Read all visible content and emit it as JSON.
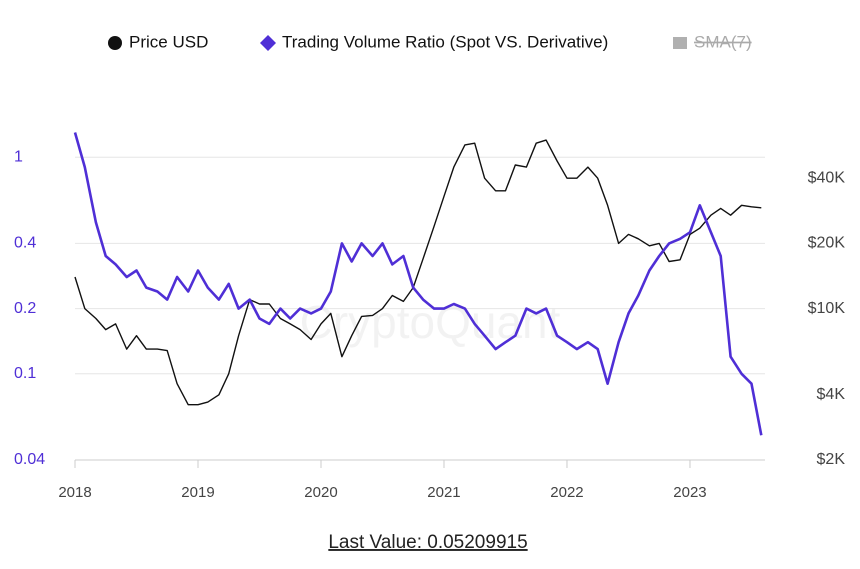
{
  "chart_data": {
    "type": "line",
    "x": [
      2018.0,
      2018.08,
      2018.17,
      2018.25,
      2018.33,
      2018.42,
      2018.5,
      2018.58,
      2018.67,
      2018.75,
      2018.83,
      2018.92,
      2019.0,
      2019.08,
      2019.17,
      2019.25,
      2019.33,
      2019.42,
      2019.5,
      2019.58,
      2019.67,
      2019.75,
      2019.83,
      2019.92,
      2020.0,
      2020.08,
      2020.17,
      2020.25,
      2020.33,
      2020.42,
      2020.5,
      2020.58,
      2020.67,
      2020.75,
      2020.83,
      2020.92,
      2021.0,
      2021.08,
      2021.17,
      2021.25,
      2021.33,
      2021.42,
      2021.5,
      2021.58,
      2021.67,
      2021.75,
      2021.83,
      2021.92,
      2022.0,
      2022.08,
      2022.17,
      2022.25,
      2022.33,
      2022.42,
      2022.5,
      2022.58,
      2022.67,
      2022.75,
      2022.83,
      2022.92,
      2023.0,
      2023.08,
      2023.17,
      2023.25,
      2023.33,
      2023.42,
      2023.5,
      2023.58
    ],
    "series": [
      {
        "name": "Price USD",
        "color": "#111111",
        "axis": "y2",
        "marker": "circle",
        "values": [
          14000,
          10000,
          9000,
          8000,
          8500,
          6500,
          7500,
          6500,
          6500,
          6400,
          4500,
          3600,
          3600,
          3700,
          4000,
          5000,
          7500,
          11000,
          10500,
          10500,
          9000,
          8500,
          8000,
          7200,
          8500,
          9500,
          6000,
          7500,
          9200,
          9300,
          10000,
          11500,
          10800,
          12500,
          17000,
          24000,
          33000,
          45000,
          57000,
          58000,
          40000,
          35000,
          35000,
          46000,
          45000,
          58000,
          60000,
          48000,
          40000,
          40000,
          45000,
          40000,
          30000,
          20000,
          22000,
          21000,
          19500,
          20000,
          16500,
          16800,
          22000,
          23500,
          27000,
          29000,
          27000,
          30000,
          29500,
          29200
        ]
      },
      {
        "name": "Trading Volume Ratio (Spot VS. Derivative)",
        "color": "#4f2fd6",
        "axis": "y",
        "marker": "diamond",
        "values": [
          1.3,
          0.9,
          0.5,
          0.35,
          0.32,
          0.28,
          0.3,
          0.25,
          0.24,
          0.22,
          0.28,
          0.24,
          0.3,
          0.25,
          0.22,
          0.26,
          0.2,
          0.22,
          0.18,
          0.17,
          0.2,
          0.18,
          0.2,
          0.19,
          0.2,
          0.24,
          0.4,
          0.33,
          0.4,
          0.35,
          0.4,
          0.32,
          0.35,
          0.25,
          0.22,
          0.2,
          0.2,
          0.21,
          0.2,
          0.17,
          0.15,
          0.13,
          0.14,
          0.15,
          0.2,
          0.19,
          0.2,
          0.15,
          0.14,
          0.13,
          0.14,
          0.13,
          0.09,
          0.14,
          0.19,
          0.23,
          0.3,
          0.35,
          0.4,
          0.42,
          0.45,
          0.6,
          0.45,
          0.35,
          0.12,
          0.1,
          0.09,
          0.052
        ]
      },
      {
        "name": "SMA(7)",
        "color": "#b0b0b0",
        "marker": "square",
        "hidden": true
      }
    ],
    "xlim": [
      2018,
      2023.61
    ],
    "xticks": [
      2018,
      2019,
      2020,
      2021,
      2022,
      2023
    ],
    "ylim": [
      0.04,
      2
    ],
    "yticks": [
      0.04,
      0.1,
      0.2,
      0.4,
      1
    ],
    "ylog": true,
    "y2lim": [
      2000,
      100000
    ],
    "y2log": true,
    "y2ticks": [
      {
        "value": 2000,
        "label": "$2K"
      },
      {
        "value": 4000,
        "label": "$4K"
      },
      {
        "value": 10000,
        "label": "$10K"
      },
      {
        "value": 20000,
        "label": "$20K"
      },
      {
        "value": 40000,
        "label": "$40K"
      }
    ],
    "grid": true,
    "watermark": "CryptoQuant",
    "footer": "Last Value: 0.05209915"
  }
}
